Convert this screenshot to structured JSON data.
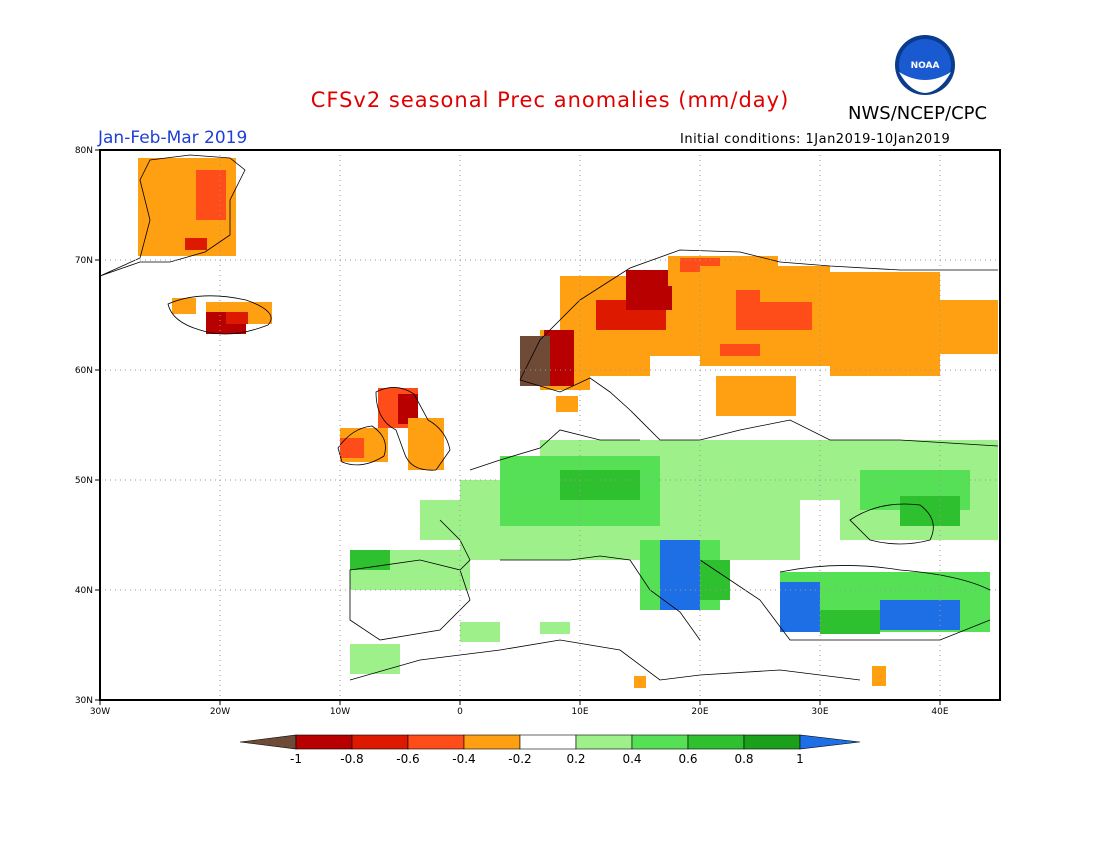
{
  "header": {
    "title": "CFSv2 seasonal Prec anomalies (mm/day)",
    "agency": "NWS/NCEP/CPC",
    "logo_text": "NOAA",
    "period": "Jan-Feb-Mar 2019",
    "initial_conditions": "Initial conditions: 1Jan2019-10Jan2019"
  },
  "axes": {
    "lon_labels": [
      "30W",
      "20W",
      "10W",
      "0",
      "10E",
      "20E",
      "30E",
      "40E"
    ],
    "lat_labels": [
      "80N",
      "70N",
      "60N",
      "50N",
      "40N",
      "30N"
    ]
  },
  "colorbar": {
    "colors": [
      "#6e4a37",
      "#b80000",
      "#dd1a00",
      "#ff4d1a",
      "#ff9f12",
      "#ffffff",
      "#9ef08a",
      "#55e055",
      "#2fc02f",
      "#1aa01a",
      "#1e6fe6"
    ],
    "labels": [
      "-1",
      "-0.8",
      "-0.6",
      "-0.4",
      "-0.2",
      "0.2",
      "0.4",
      "0.6",
      "0.8",
      "1"
    ]
  },
  "map": {
    "domain": "Europe",
    "lon_range": [
      -30,
      45
    ],
    "lat_range": [
      30,
      80
    ]
  }
}
